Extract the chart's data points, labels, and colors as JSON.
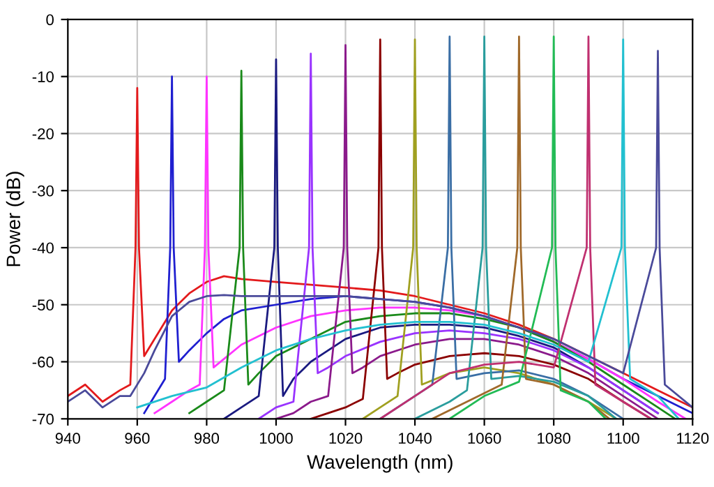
{
  "chart_data": {
    "type": "line",
    "xlabel": "Wavelength (nm)",
    "ylabel": "Power (dB)",
    "xlim": [
      940,
      1120
    ],
    "xticks": [
      940,
      960,
      980,
      1000,
      1020,
      1040,
      1060,
      1080,
      1100,
      1120
    ],
    "ylim": [
      -70,
      0
    ],
    "yticks": [
      -70,
      -60,
      -50,
      -40,
      -30,
      -20,
      -10,
      0
    ],
    "grid": true,
    "marker": "none",
    "line_style": "solid",
    "series": [
      {
        "color": "#e31a1c",
        "x": [
          940,
          945,
          950,
          955,
          958,
          959.5,
          960,
          960.5,
          962,
          965,
          970,
          975,
          980,
          985,
          990,
          1000,
          1010,
          1020,
          1030,
          1040,
          1050,
          1060,
          1070,
          1080,
          1090,
          1100,
          1110,
          1120
        ],
        "values": [
          -66,
          -64,
          -67,
          -65,
          -64,
          -40,
          -12,
          -40,
          -59,
          -56,
          -51,
          -48,
          -46,
          -45,
          -45.5,
          -46,
          -46.5,
          -47,
          -47.5,
          -48.5,
          -50,
          -51.5,
          -53.5,
          -56,
          -59,
          -62,
          -65,
          -68
        ]
      },
      {
        "color": "#1f1fd0",
        "x": [
          962,
          965,
          968,
          969.5,
          970,
          970.5,
          972,
          975,
          980,
          985,
          990,
          1000,
          1010,
          1020,
          1030,
          1040,
          1050,
          1060,
          1070,
          1080,
          1090,
          1100,
          1110,
          1120
        ],
        "values": [
          -69,
          -66,
          -63,
          -40,
          -10,
          -40,
          -60,
          -58,
          -55,
          -52.5,
          -51,
          -50,
          -49,
          -48.5,
          -49,
          -49.5,
          -50.5,
          -52,
          -54,
          -56.5,
          -59.5,
          -63,
          -66,
          -69
        ]
      },
      {
        "color": "#ff33ff",
        "x": [
          965,
          970,
          975,
          978,
          979.5,
          980,
          980.5,
          982,
          985,
          990,
          1000,
          1010,
          1020,
          1030,
          1040,
          1050,
          1060,
          1070,
          1080,
          1090,
          1100,
          1110,
          1118
        ],
        "values": [
          -69,
          -67,
          -65,
          -64,
          -40,
          -10,
          -40,
          -61,
          -59.5,
          -57,
          -54,
          -52,
          -51,
          -50.5,
          -50.5,
          -51,
          -52,
          -54,
          -56.5,
          -59.5,
          -63,
          -67,
          -70
        ]
      },
      {
        "color": "#1a8a1a",
        "x": [
          975,
          980,
          985,
          989.5,
          990,
          990.5,
          992,
          995,
          1000,
          1010,
          1020,
          1030,
          1040,
          1050,
          1060,
          1070,
          1080,
          1090,
          1100,
          1110,
          1115
        ],
        "values": [
          -69,
          -67,
          -65,
          -40,
          -9,
          -40,
          -64,
          -62,
          -59,
          -56,
          -53,
          -52,
          -51.5,
          -51.5,
          -52.5,
          -54,
          -56.5,
          -60,
          -64,
          -68,
          -70
        ]
      },
      {
        "color": "#1a1a80",
        "x": [
          985,
          990,
          995,
          999.5,
          1000,
          1000.5,
          1002,
          1005,
          1010,
          1020,
          1030,
          1040,
          1050,
          1060,
          1070,
          1080,
          1090,
          1100,
          1110
        ],
        "values": [
          -70,
          -68,
          -66,
          -40,
          -7,
          -40,
          -66,
          -63,
          -60,
          -56,
          -54,
          -53.5,
          -53.5,
          -54,
          -55.5,
          -57.5,
          -61,
          -65,
          -69
        ]
      },
      {
        "color": "#9933ff",
        "x": [
          995,
          1000,
          1005,
          1009.5,
          1010,
          1010.5,
          1012,
          1015,
          1020,
          1030,
          1040,
          1050,
          1060,
          1070,
          1080,
          1090,
          1100,
          1110
        ],
        "values": [
          -70,
          -68,
          -67,
          -40,
          -6,
          -40,
          -62,
          -61,
          -59,
          -56.5,
          -55,
          -54.5,
          -55,
          -56,
          -58,
          -61,
          -65,
          -69
        ]
      },
      {
        "color": "#8b1a8b",
        "x": [
          1000,
          1005,
          1010,
          1015,
          1019.5,
          1020,
          1020.5,
          1022,
          1025,
          1030,
          1040,
          1050,
          1060,
          1070,
          1080,
          1090,
          1100,
          1110
        ],
        "values": [
          -70,
          -69,
          -67,
          -66,
          -40,
          -4.5,
          -40,
          -62,
          -61,
          -59,
          -57,
          -56,
          -56,
          -57,
          -59,
          -62,
          -66,
          -70
        ]
      },
      {
        "color": "#8b0000",
        "x": [
          1010,
          1015,
          1020,
          1025,
          1029.5,
          1030,
          1030.5,
          1032,
          1035,
          1040,
          1050,
          1060,
          1070,
          1080,
          1090,
          1100,
          1108
        ],
        "values": [
          -70,
          -69,
          -68,
          -66.5,
          -40,
          -3.5,
          -40,
          -63,
          -62,
          -60.5,
          -59,
          -58.5,
          -59,
          -60.5,
          -63,
          -67,
          -70
        ]
      },
      {
        "color": "#a0a020",
        "x": [
          1025,
          1030,
          1035,
          1039.5,
          1040,
          1040.5,
          1042,
          1050,
          1060,
          1070,
          1080,
          1090,
          1098
        ],
        "values": [
          -70,
          -68,
          -66,
          -40,
          -3.5,
          -40,
          -64,
          -62,
          -61,
          -62,
          -64,
          -67,
          -70
        ]
      },
      {
        "color": "#3a6ea5",
        "x": [
          1030,
          1040,
          1045,
          1049.5,
          1050,
          1050.5,
          1052,
          1060,
          1070,
          1080,
          1090,
          1100
        ],
        "values": [
          -70,
          -66,
          -64,
          -40,
          -3,
          -40,
          -63,
          -62,
          -61.5,
          -63,
          -66,
          -70
        ]
      },
      {
        "color": "#2a9d9d",
        "x": [
          1040,
          1050,
          1055,
          1059.5,
          1060,
          1060.5,
          1062,
          1070,
          1080,
          1090,
          1098
        ],
        "values": [
          -70,
          -67,
          -65,
          -40,
          -3,
          -40,
          -63,
          -62.5,
          -63.5,
          -66,
          -70
        ]
      },
      {
        "color": "#a0692a",
        "x": [
          1045,
          1055,
          1065,
          1069.5,
          1070,
          1070.5,
          1072,
          1080,
          1090,
          1096
        ],
        "values": [
          -70,
          -67,
          -64,
          -40,
          -3,
          -40,
          -63,
          -64,
          -67,
          -70
        ]
      },
      {
        "color": "#22bb55",
        "x": [
          1050,
          1060,
          1070,
          1079.5,
          1080,
          1080.5,
          1082,
          1090,
          1095
        ],
        "values": [
          -70,
          -66,
          -63.5,
          -40,
          -3,
          -40,
          -65,
          -67,
          -70
        ]
      },
      {
        "color": "#c03070",
        "x": [
          1030,
          1040,
          1050,
          1060,
          1070,
          1080,
          1089.5,
          1090,
          1090.5,
          1092,
          1100,
          1108
        ],
        "values": [
          -70,
          -66,
          -62,
          -60.5,
          -60,
          -61,
          -40,
          -3,
          -40,
          -64,
          -67,
          -70
        ]
      },
      {
        "color": "#22c0d0",
        "x": [
          960,
          970,
          980,
          990,
          1000,
          1010,
          1020,
          1030,
          1040,
          1050,
          1060,
          1070,
          1080,
          1090,
          1099.5,
          1100,
          1100.5,
          1102,
          1110,
          1116
        ],
        "values": [
          -68,
          -66,
          -64.5,
          -61,
          -58,
          -56,
          -54.5,
          -53.5,
          -53,
          -53,
          -53.5,
          -55,
          -57,
          -60,
          -40,
          -3.5,
          -40,
          -63,
          -66,
          -70
        ]
      },
      {
        "color": "#4a4a9a",
        "x": [
          940,
          945,
          950,
          955,
          958,
          962,
          965,
          970,
          975,
          980,
          985,
          990,
          1000,
          1010,
          1020,
          1030,
          1040,
          1050,
          1060,
          1070,
          1080,
          1090,
          1100,
          1109.5,
          1110,
          1110.5,
          1112,
          1120
        ],
        "values": [
          -67,
          -65,
          -68,
          -66,
          -66,
          -62,
          -58,
          -52,
          -49.5,
          -48.5,
          -48.3,
          -48.5,
          -48.5,
          -48.5,
          -48.5,
          -49,
          -49.5,
          -50.5,
          -52,
          -54,
          -56,
          -59,
          -62,
          -40,
          -5.5,
          -40,
          -64,
          -68
        ]
      }
    ]
  }
}
